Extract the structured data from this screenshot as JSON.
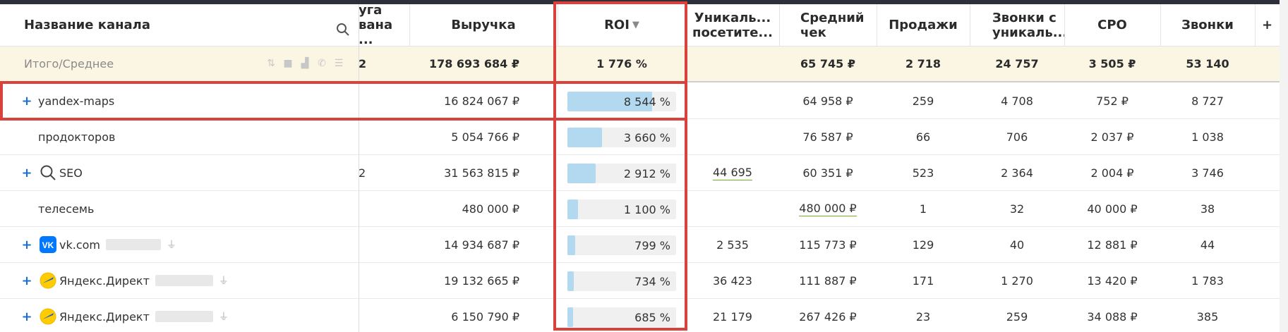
{
  "colors": {
    "accent": "#1c6fd1",
    "highlight": "#d9423c",
    "roi_bar": "#b3d9f1",
    "total_row_bg": "#fbf6e3"
  },
  "header": {
    "name": "Название канала",
    "cut": "уга\nвана ...",
    "revenue": "Выручка",
    "roi": "ROI",
    "roi_sort": "▼",
    "uniq": "Уникаль...\nпосетите...",
    "avg_check": "Средний\nчек",
    "sales": "Продажи",
    "calls_uniq": "Звонки с\nуникаль...",
    "cpo": "CPO",
    "calls": "Звонки",
    "add": "+"
  },
  "total": {
    "label": "Итого/Среднее",
    "cut": "2",
    "revenue": "178 693 684 ₽",
    "roi": "1 776 %",
    "uniq": "",
    "avg_check": "65 745 ₽",
    "sales": "2 718",
    "calls_uniq": "24 757",
    "cpo": "3 505 ₽",
    "calls": "53 140",
    "tool_icons": [
      "sort-icon",
      "square-icon",
      "area-chart-icon",
      "phone-icon",
      "list-icon"
    ]
  },
  "rows": [
    {
      "plus": true,
      "icon": "",
      "name": "yandex-maps",
      "plug": false,
      "blur": 0,
      "cut": "",
      "revenue": "16 824 067 ₽",
      "roi": "8 544 %",
      "roi_fill": 0.78,
      "uniq": "",
      "uniq_under": false,
      "avg_check": "64 958 ₽",
      "check_under": false,
      "sales": "259",
      "calls_uniq": "4 708",
      "cpo": "752 ₽",
      "calls": "8 727"
    },
    {
      "plus": false,
      "icon": "",
      "name": "продокторов",
      "plug": false,
      "blur": 0,
      "cut": "",
      "revenue": "5 054 766 ₽",
      "roi": "3 660 %",
      "roi_fill": 0.32,
      "uniq": "",
      "uniq_under": false,
      "avg_check": "76 587 ₽",
      "check_under": false,
      "sales": "66",
      "calls_uniq": "706",
      "cpo": "2 037 ₽",
      "calls": "1 038"
    },
    {
      "plus": true,
      "icon": "search",
      "name": "SEO",
      "plug": false,
      "blur": 0,
      "cut": "2",
      "revenue": "31 563 815 ₽",
      "roi": "2 912 %",
      "roi_fill": 0.26,
      "uniq": "44 695",
      "uniq_under": true,
      "avg_check": "60 351 ₽",
      "check_under": false,
      "sales": "523",
      "calls_uniq": "2 364",
      "cpo": "2 004 ₽",
      "calls": "3 746"
    },
    {
      "plus": false,
      "icon": "",
      "name": "телесемь",
      "plug": false,
      "blur": 0,
      "cut": "",
      "revenue": "480 000 ₽",
      "roi": "1 100 %",
      "roi_fill": 0.1,
      "uniq": "",
      "uniq_under": false,
      "avg_check": "480 000 ₽",
      "check_under": true,
      "sales": "1",
      "calls_uniq": "32",
      "cpo": "40 000 ₽",
      "calls": "38"
    },
    {
      "plus": true,
      "icon": "vk",
      "name": "vk.com",
      "plug": true,
      "blur": 78,
      "cut": "",
      "revenue": "14 934 687 ₽",
      "roi": "799 %",
      "roi_fill": 0.07,
      "uniq": "2 535",
      "uniq_under": false,
      "avg_check": "115 773 ₽",
      "check_under": false,
      "sales": "129",
      "calls_uniq": "40",
      "cpo": "12 881 ₽",
      "calls": "44"
    },
    {
      "plus": true,
      "icon": "yandex",
      "name": "Яндекс.Директ",
      "plug": true,
      "blur": 82,
      "cut": "",
      "revenue": "19 132 665 ₽",
      "roi": "734 %",
      "roi_fill": 0.06,
      "uniq": "36 423",
      "uniq_under": false,
      "avg_check": "111 887 ₽",
      "check_under": false,
      "sales": "171",
      "calls_uniq": "1 270",
      "cpo": "13 420 ₽",
      "calls": "1 783"
    },
    {
      "plus": true,
      "icon": "yandex",
      "name": "Яндекс.Директ",
      "plug": true,
      "blur": 82,
      "cut": "",
      "revenue": "6 150 790 ₽",
      "roi": "685 %",
      "roi_fill": 0.055,
      "uniq": "21 179",
      "uniq_under": false,
      "avg_check": "267 426 ₽",
      "check_under": false,
      "sales": "23",
      "calls_uniq": "259",
      "cpo": "34 088 ₽",
      "calls": "385"
    }
  ]
}
